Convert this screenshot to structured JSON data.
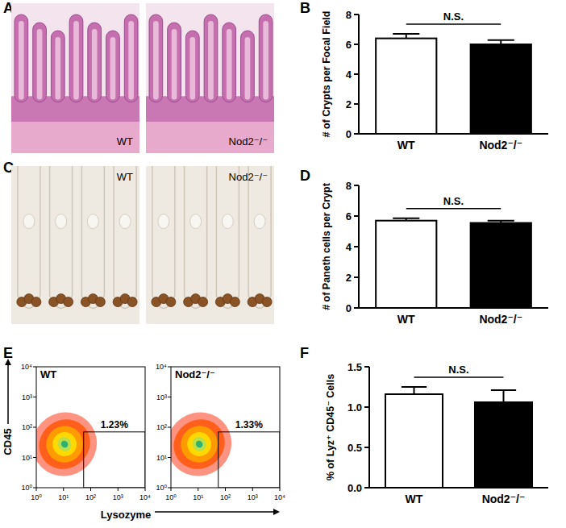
{
  "chart_data": [
    {
      "type": "image",
      "panel": "A",
      "labels": [
        "WT",
        "Nod2⁻/⁻"
      ]
    },
    {
      "type": "bar",
      "panel": "B",
      "categories": [
        "WT",
        "Nod2⁻/⁻"
      ],
      "values": [
        6.4,
        6.0
      ],
      "errors": [
        0.3,
        0.28
      ],
      "colors": [
        "#ffffff",
        "#000000"
      ],
      "y_label": "# of Crypts per Focal Field",
      "ylim": [
        0,
        8
      ],
      "yticks": [
        0,
        2,
        4,
        6,
        8
      ],
      "annotation": "N.S."
    },
    {
      "type": "image",
      "panel": "C",
      "labels": [
        "WT",
        "Nod2⁻/⁻"
      ]
    },
    {
      "type": "bar",
      "panel": "D",
      "categories": [
        "WT",
        "Nod2⁻/⁻"
      ],
      "values": [
        5.7,
        5.55
      ],
      "errors": [
        0.15,
        0.15
      ],
      "colors": [
        "#ffffff",
        "#000000"
      ],
      "y_label": "# of Paneth cells per  Crypt",
      "ylim": [
        0,
        8
      ],
      "yticks": [
        0,
        2,
        4,
        6,
        8
      ],
      "annotation": "N.S."
    },
    {
      "type": "scatter",
      "panel": "E",
      "marker": "density",
      "log": true,
      "plots": [
        {
          "name": "WT",
          "gate_label": "1.23%"
        },
        {
          "name": "Nod2⁻/⁻",
          "gate_label": "1.33%"
        }
      ],
      "x_label": "Lysozyme",
      "y_label": "CD45",
      "xlim": [
        1,
        10000
      ],
      "ylim": [
        1,
        10000
      ],
      "xticks": [
        {
          "value": 1,
          "label": "10⁰"
        },
        {
          "value": 10,
          "label": "10¹"
        },
        {
          "value": 100,
          "label": "10²"
        },
        {
          "value": 1000,
          "label": "10³"
        },
        {
          "value": 10000,
          "label": "10⁴"
        }
      ],
      "yticks": [
        {
          "value": 1,
          "label": "10⁰"
        },
        {
          "value": 10,
          "label": "10¹"
        },
        {
          "value": 100,
          "label": "10²"
        },
        {
          "value": 1000,
          "label": "10³"
        },
        {
          "value": 10000,
          "label": "10⁴"
        }
      ],
      "gate": {
        "x": [
          55,
          10000
        ],
        "y": [
          1,
          70
        ]
      }
    },
    {
      "type": "bar",
      "panel": "F",
      "categories": [
        "WT",
        "Nod2⁻/⁻"
      ],
      "values": [
        1.16,
        1.06
      ],
      "errors": [
        0.09,
        0.15
      ],
      "colors": [
        "#ffffff",
        "#000000"
      ],
      "y_label": "% of Lyz⁺ CD45⁻ Cells",
      "ylim": [
        0,
        1.5
      ],
      "yticks": [
        {
          "value": 0,
          "label": "0.0"
        },
        {
          "value": 0.5,
          "label": "0.5"
        },
        {
          "value": 1,
          "label": "1.0"
        },
        {
          "value": 1.5,
          "label": "1.5"
        }
      ],
      "annotation": "N.S."
    }
  ]
}
